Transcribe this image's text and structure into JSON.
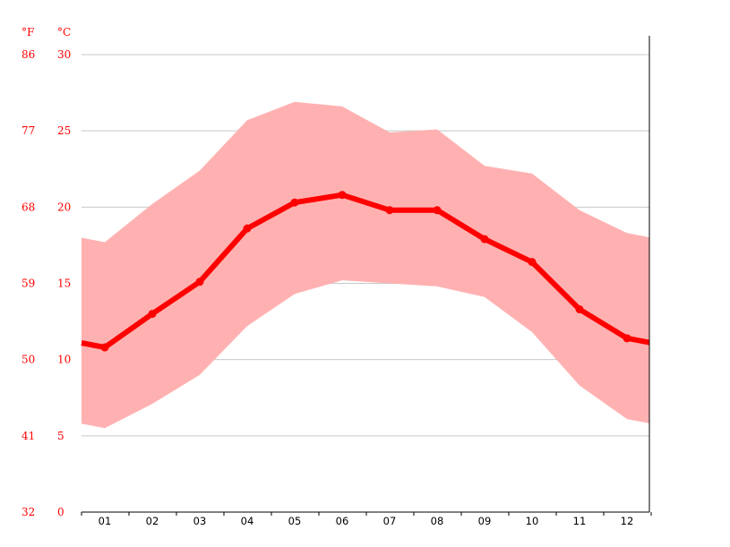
{
  "chart_data": {
    "type": "area",
    "title": "",
    "unit_labels": {
      "fahrenheit": "°F",
      "celsius": "°C"
    },
    "categories": [
      "01",
      "02",
      "03",
      "04",
      "05",
      "06",
      "07",
      "08",
      "09",
      "10",
      "11",
      "12"
    ],
    "y_ticks_c": [
      "0",
      "5",
      "10",
      "15",
      "20",
      "25",
      "30"
    ],
    "y_ticks_f": [
      "32",
      "41",
      "50",
      "59",
      "68",
      "77",
      "86"
    ],
    "ylim_c": [
      0,
      30
    ],
    "grid": true,
    "series": [
      {
        "role": "min",
        "values": [
          5.5,
          7.1,
          9.0,
          12.2,
          14.3,
          15.2,
          15.0,
          14.8,
          14.1,
          11.8,
          8.3,
          6.1
        ]
      },
      {
        "role": "max",
        "values": [
          17.7,
          20.2,
          22.4,
          25.7,
          26.9,
          26.6,
          24.9,
          25.1,
          22.7,
          22.2,
          19.8,
          18.3
        ]
      },
      {
        "role": "mean",
        "values": [
          10.8,
          13.0,
          15.1,
          18.6,
          20.3,
          20.8,
          19.8,
          19.8,
          17.9,
          16.4,
          13.3,
          11.4
        ]
      }
    ],
    "colors": {
      "mean_line": "#ff0000",
      "range_fill": "#ffb1b1",
      "grid": "#c8c8c8",
      "axis": "#000000",
      "label": "#ff0000"
    }
  }
}
